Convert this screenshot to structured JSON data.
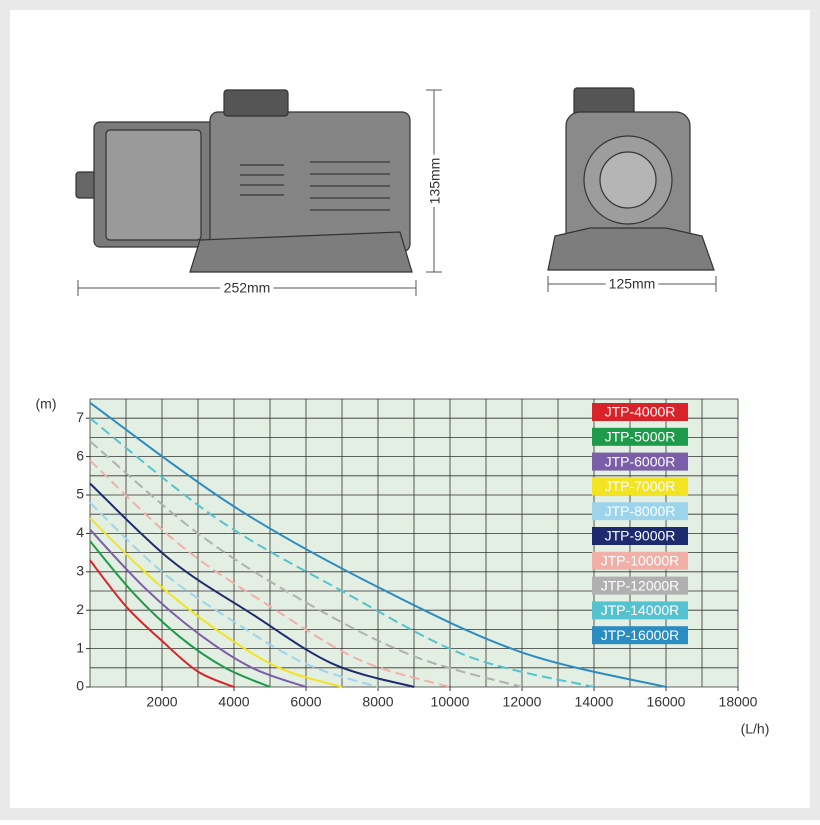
{
  "dimensions": {
    "length": "252mm",
    "height": "135mm",
    "width": "125mm"
  },
  "chart_data": {
    "type": "line",
    "y_label": "(m)",
    "x_label": "(L/h)",
    "xlim": [
      0,
      18000
    ],
    "xticks": [
      2000,
      4000,
      6000,
      8000,
      10000,
      12000,
      14000,
      16000,
      18000
    ],
    "ylim": [
      0,
      7.5
    ],
    "yticks": [
      0,
      1,
      2,
      3,
      4,
      5,
      6,
      7
    ],
    "grid": true,
    "grid_step": {
      "x": 1000,
      "y": 0.5
    },
    "legend": "upper right",
    "series": [
      {
        "name": "JTP-4000R",
        "color": "#d8232a",
        "dashed": false,
        "x": [
          0,
          1000,
          2000,
          3000,
          4000
        ],
        "values": [
          3.3,
          2.1,
          1.2,
          0.4,
          0
        ]
      },
      {
        "name": "JTP-5000R",
        "color": "#1e9b4a",
        "dashed": false,
        "x": [
          0,
          1250,
          2500,
          3750,
          5000
        ],
        "values": [
          3.8,
          2.4,
          1.3,
          0.5,
          0
        ]
      },
      {
        "name": "JTP-6000R",
        "color": "#7b5ea8",
        "dashed": false,
        "x": [
          0,
          1500,
          3000,
          4500,
          6000
        ],
        "values": [
          4.1,
          2.6,
          1.4,
          0.5,
          0
        ]
      },
      {
        "name": "JTP-7000R",
        "color": "#f2e422",
        "dashed": false,
        "x": [
          0,
          1750,
          3500,
          5250,
          7000
        ],
        "values": [
          4.4,
          2.8,
          1.5,
          0.5,
          0
        ]
      },
      {
        "name": "JTP-8000R",
        "color": "#9dd4ec",
        "dashed": true,
        "x": [
          0,
          2000,
          4000,
          6000,
          8000
        ],
        "values": [
          4.8,
          3.0,
          1.7,
          0.6,
          0
        ]
      },
      {
        "name": "JTP-9000R",
        "color": "#1d2a6e",
        "dashed": false,
        "x": [
          0,
          2250,
          4500,
          6750,
          9000
        ],
        "values": [
          5.3,
          3.3,
          1.9,
          0.6,
          0
        ]
      },
      {
        "name": "JTP-10000R",
        "color": "#f0b0a8",
        "dashed": true,
        "x": [
          0,
          2500,
          5000,
          7500,
          10000
        ],
        "values": [
          5.9,
          3.7,
          2.1,
          0.7,
          0
        ]
      },
      {
        "name": "JTP-12000R",
        "color": "#b0b0b0",
        "dashed": true,
        "x": [
          0,
          3000,
          6000,
          9000,
          12000
        ],
        "values": [
          6.4,
          4.0,
          2.2,
          0.8,
          0
        ]
      },
      {
        "name": "JTP-14000R",
        "color": "#55c3cf",
        "dashed": true,
        "x": [
          0,
          3500,
          7000,
          10500,
          14000
        ],
        "values": [
          7.0,
          4.4,
          2.5,
          0.8,
          0
        ]
      },
      {
        "name": "JTP-16000R",
        "color": "#2a8cc0",
        "dashed": false,
        "x": [
          0,
          4000,
          8000,
          12000,
          16000
        ],
        "values": [
          7.4,
          4.7,
          2.6,
          0.9,
          0
        ]
      }
    ]
  }
}
